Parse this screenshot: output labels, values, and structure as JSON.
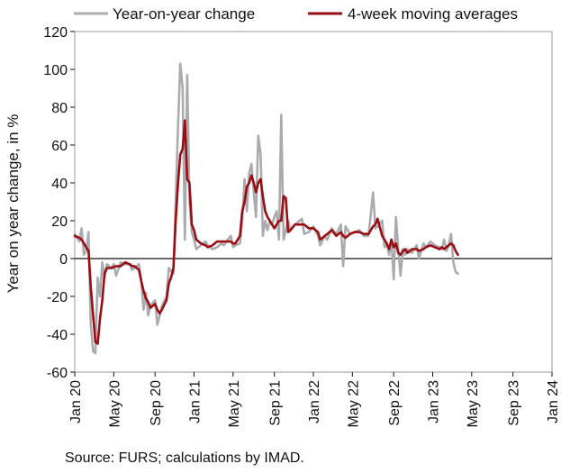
{
  "source_note": "Source: FURS; calculations by IMAD.",
  "colors": {
    "yoy": "#a9abae",
    "avg": "#9b0d12",
    "axis": "#111111",
    "frame": "#9a9a9a"
  },
  "chart_data": {
    "type": "line",
    "title": "",
    "xlabel": "",
    "ylabel": "Year on year change, in %",
    "ylim": [
      -60,
      120
    ],
    "yticks": [
      -60,
      -40,
      -20,
      0,
      20,
      40,
      60,
      80,
      100,
      120
    ],
    "xlim": [
      0,
      208
    ],
    "xticks": [
      {
        "label": "Jan 20",
        "x": 0
      },
      {
        "label": "May 20",
        "x": 17
      },
      {
        "label": "Sep 20",
        "x": 35
      },
      {
        "label": "Jan 21",
        "x": 52
      },
      {
        "label": "May 21",
        "x": 69
      },
      {
        "label": "Sep 21",
        "x": 87
      },
      {
        "label": "Jan 22",
        "x": 104
      },
      {
        "label": "May 22",
        "x": 121
      },
      {
        "label": "Sep 22",
        "x": 139
      },
      {
        "label": "Jan 23",
        "x": 156
      },
      {
        "label": "May 23",
        "x": 173
      },
      {
        "label": "Sep 23",
        "x": 191
      },
      {
        "label": "Jan 24",
        "x": 208
      }
    ],
    "legend_position": "top",
    "series": [
      {
        "name": "Year-on-year change",
        "points": [
          [
            0,
            13
          ],
          [
            2,
            9
          ],
          [
            3,
            16
          ],
          [
            4,
            2
          ],
          [
            5,
            4
          ],
          [
            6,
            14
          ],
          [
            7,
            -35
          ],
          [
            8,
            -49
          ],
          [
            9,
            -50
          ],
          [
            10,
            -10
          ],
          [
            11,
            -20
          ],
          [
            12,
            -2
          ],
          [
            13,
            -10
          ],
          [
            14,
            -3
          ],
          [
            16,
            -5
          ],
          [
            17,
            -3
          ],
          [
            18,
            -9
          ],
          [
            20,
            -2
          ],
          [
            22,
            -3
          ],
          [
            24,
            -3
          ],
          [
            25,
            -6
          ],
          [
            26,
            -5
          ],
          [
            28,
            -3
          ],
          [
            29,
            -12
          ],
          [
            30,
            -27
          ],
          [
            31,
            -18
          ],
          [
            32,
            -30
          ],
          [
            33,
            -25
          ],
          [
            35,
            -22
          ],
          [
            36,
            -35
          ],
          [
            37,
            -30
          ],
          [
            38,
            -25
          ],
          [
            40,
            -20
          ],
          [
            41,
            -5
          ],
          [
            43,
            -8
          ],
          [
            44,
            30
          ],
          [
            45,
            70
          ],
          [
            46,
            103
          ],
          [
            47,
            90
          ],
          [
            48,
            10
          ],
          [
            49,
            97
          ],
          [
            50,
            30
          ],
          [
            51,
            14
          ],
          [
            52,
            10
          ],
          [
            53,
            5
          ],
          [
            55,
            7
          ],
          [
            57,
            9
          ],
          [
            58,
            7
          ],
          [
            60,
            5
          ],
          [
            62,
            6
          ],
          [
            64,
            8
          ],
          [
            65,
            7
          ],
          [
            66,
            9
          ],
          [
            68,
            12
          ],
          [
            69,
            6
          ],
          [
            70,
            7
          ],
          [
            72,
            8
          ],
          [
            73,
            20
          ],
          [
            74,
            42
          ],
          [
            75,
            25
          ],
          [
            76,
            45
          ],
          [
            77,
            50
          ],
          [
            78,
            35
          ],
          [
            79,
            22
          ],
          [
            80,
            65
          ],
          [
            81,
            55
          ],
          [
            82,
            12
          ],
          [
            83,
            20
          ],
          [
            84,
            15
          ],
          [
            85,
            20
          ],
          [
            86,
            18
          ],
          [
            87,
            22
          ],
          [
            88,
            25
          ],
          [
            89,
            10
          ],
          [
            90,
            76
          ],
          [
            91,
            10
          ],
          [
            92,
            15
          ],
          [
            93,
            20
          ],
          [
            94,
            15
          ],
          [
            96,
            18
          ],
          [
            98,
            20
          ],
          [
            99,
            21
          ],
          [
            100,
            13
          ],
          [
            102,
            14
          ],
          [
            104,
            17
          ],
          [
            106,
            12
          ],
          [
            107,
            7
          ],
          [
            109,
            12
          ],
          [
            110,
            10
          ],
          [
            112,
            16
          ],
          [
            114,
            13
          ],
          [
            116,
            18
          ],
          [
            117,
            -4
          ],
          [
            118,
            17
          ],
          [
            120,
            13
          ],
          [
            122,
            14
          ],
          [
            124,
            15
          ],
          [
            126,
            12
          ],
          [
            128,
            12
          ],
          [
            130,
            35
          ],
          [
            131,
            16
          ],
          [
            132,
            17
          ],
          [
            134,
            20
          ],
          [
            135,
            6
          ],
          [
            136,
            8
          ],
          [
            137,
            2
          ],
          [
            138,
            10
          ],
          [
            139,
            -11
          ],
          [
            140,
            22
          ],
          [
            141,
            5
          ],
          [
            142,
            -9
          ],
          [
            143,
            5
          ],
          [
            144,
            2
          ],
          [
            145,
            5
          ],
          [
            147,
            3
          ],
          [
            149,
            7
          ],
          [
            150,
            0
          ],
          [
            152,
            8
          ],
          [
            153,
            6
          ],
          [
            155,
            9
          ],
          [
            157,
            7
          ],
          [
            159,
            6
          ],
          [
            160,
            5
          ],
          [
            161,
            10
          ],
          [
            162,
            4
          ],
          [
            163,
            7
          ],
          [
            164,
            13
          ],
          [
            165,
            -2
          ],
          [
            166,
            -7
          ],
          [
            167,
            -8
          ]
        ]
      },
      {
        "name": "4-week moving averages",
        "points": [
          [
            0,
            12
          ],
          [
            2,
            11
          ],
          [
            3,
            10
          ],
          [
            4,
            8
          ],
          [
            5,
            6
          ],
          [
            6,
            4
          ],
          [
            7,
            -15
          ],
          [
            8,
            -30
          ],
          [
            9,
            -44
          ],
          [
            10,
            -45
          ],
          [
            11,
            -32
          ],
          [
            12,
            -22
          ],
          [
            13,
            -8
          ],
          [
            14,
            -5
          ],
          [
            16,
            -5
          ],
          [
            18,
            -4
          ],
          [
            20,
            -4
          ],
          [
            22,
            -2
          ],
          [
            24,
            -3
          ],
          [
            25,
            -4
          ],
          [
            26,
            -4
          ],
          [
            28,
            -6
          ],
          [
            29,
            -12
          ],
          [
            30,
            -17
          ],
          [
            31,
            -21
          ],
          [
            32,
            -23
          ],
          [
            33,
            -26
          ],
          [
            35,
            -24
          ],
          [
            36,
            -27
          ],
          [
            37,
            -29
          ],
          [
            38,
            -27
          ],
          [
            40,
            -22
          ],
          [
            41,
            -13
          ],
          [
            42,
            -10
          ],
          [
            43,
            -5
          ],
          [
            44,
            20
          ],
          [
            45,
            40
          ],
          [
            46,
            55
          ],
          [
            47,
            58
          ],
          [
            48,
            73
          ],
          [
            49,
            42
          ],
          [
            50,
            40
          ],
          [
            51,
            18
          ],
          [
            52,
            15
          ],
          [
            53,
            10
          ],
          [
            55,
            8
          ],
          [
            57,
            7
          ],
          [
            58,
            6
          ],
          [
            60,
            7
          ],
          [
            62,
            9
          ],
          [
            64,
            9
          ],
          [
            66,
            9
          ],
          [
            68,
            9
          ],
          [
            69,
            8
          ],
          [
            70,
            8
          ],
          [
            72,
            12
          ],
          [
            73,
            25
          ],
          [
            74,
            30
          ],
          [
            75,
            38
          ],
          [
            76,
            40
          ],
          [
            77,
            44
          ],
          [
            78,
            40
          ],
          [
            79,
            35
          ],
          [
            80,
            40
          ],
          [
            81,
            42
          ],
          [
            82,
            33
          ],
          [
            83,
            25
          ],
          [
            84,
            22
          ],
          [
            85,
            20
          ],
          [
            86,
            18
          ],
          [
            87,
            16
          ],
          [
            88,
            18
          ],
          [
            89,
            20
          ],
          [
            90,
            20
          ],
          [
            91,
            33
          ],
          [
            92,
            32
          ],
          [
            93,
            14
          ],
          [
            94,
            15
          ],
          [
            96,
            18
          ],
          [
            98,
            18
          ],
          [
            100,
            18
          ],
          [
            102,
            16
          ],
          [
            104,
            16
          ],
          [
            106,
            14
          ],
          [
            107,
            10
          ],
          [
            109,
            12
          ],
          [
            110,
            13
          ],
          [
            112,
            15
          ],
          [
            114,
            12
          ],
          [
            116,
            14
          ],
          [
            117,
            12
          ],
          [
            118,
            11
          ],
          [
            120,
            13
          ],
          [
            122,
            14
          ],
          [
            124,
            14
          ],
          [
            126,
            13
          ],
          [
            128,
            13
          ],
          [
            130,
            17
          ],
          [
            131,
            18
          ],
          [
            132,
            21
          ],
          [
            134,
            12
          ],
          [
            135,
            10
          ],
          [
            136,
            8
          ],
          [
            137,
            5
          ],
          [
            138,
            10
          ],
          [
            139,
            6
          ],
          [
            140,
            8
          ],
          [
            141,
            3
          ],
          [
            142,
            2
          ],
          [
            143,
            4
          ],
          [
            144,
            5
          ],
          [
            145,
            3
          ],
          [
            147,
            5
          ],
          [
            149,
            5
          ],
          [
            150,
            4
          ],
          [
            152,
            5
          ],
          [
            153,
            6
          ],
          [
            155,
            7
          ],
          [
            157,
            6
          ],
          [
            159,
            5
          ],
          [
            160,
            6
          ],
          [
            161,
            5
          ],
          [
            162,
            6
          ],
          [
            163,
            7
          ],
          [
            164,
            8
          ],
          [
            165,
            7
          ],
          [
            166,
            4
          ],
          [
            167,
            2
          ]
        ]
      }
    ]
  }
}
